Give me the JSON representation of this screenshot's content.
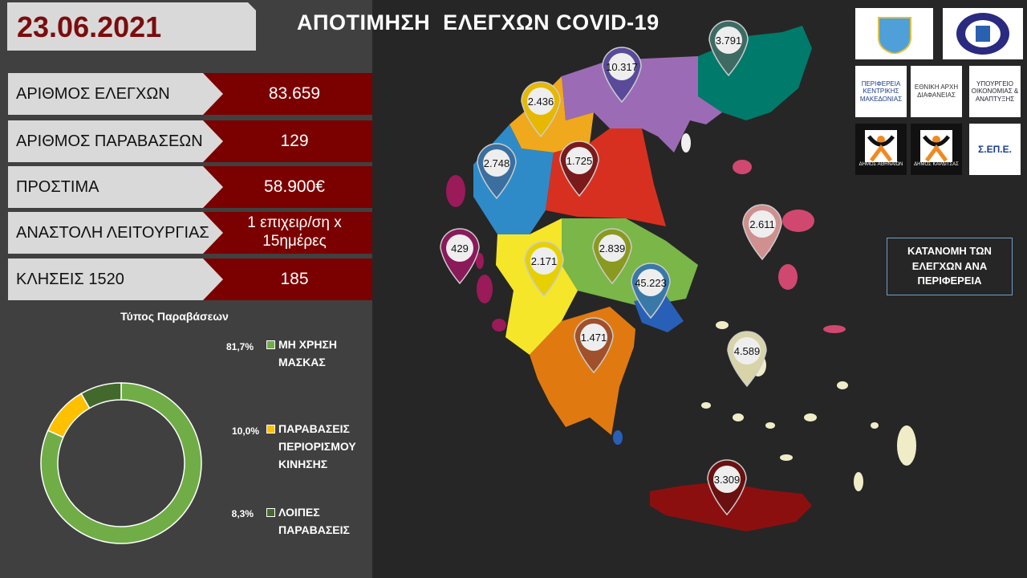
{
  "date": "23.06.2021",
  "title": "ΑΠΟΤΙΜΗΣΗ  ΕΛΕΓΧΩΝ COVID-19",
  "stats": [
    {
      "label": "ΑΡΙΘΜΟΣ ΕΛΕΓΧΩΝ",
      "value": "83.659"
    },
    {
      "label": "ΑΡΙΘΜΟΣ ΠΑΡΑΒΑΣΕΩΝ",
      "value": "129"
    },
    {
      "label": "ΠΡΟΣΤΙΜΑ",
      "value": "58.900€"
    },
    {
      "label": "ΑΝΑΣΤΟΛΗ ΛΕΙΤΟΥΡΓΙΑΣ",
      "value": "1 επιχειρ/ση x 15ημέρες"
    },
    {
      "label": "ΚΛΗΣΕΙΣ 1520",
      "value": "185"
    }
  ],
  "chart_data": {
    "type": "pie",
    "donut": true,
    "title": "Τύπος Παραβάσεων",
    "categories": [
      "ΜΗ ΧΡΗΣΗ ΜΑΣΚΑΣ",
      "ΠΑΡΑΒΑΣΕΙΣ ΠΕΡΙΟΡΙΣΜΟΥ ΚΙΝΗΣΗΣ",
      "ΛΟΙΠΕΣ ΠΑΡΑΒΑΣΕΙΣ"
    ],
    "values": [
      81.7,
      10.0,
      8.3
    ],
    "labels": [
      "81,7%",
      "10,0%",
      "8,3%"
    ],
    "colors": [
      "#70ad47",
      "#ffc000",
      "#43682b"
    ],
    "legend": "right"
  },
  "map": {
    "caption": "ΚΑΤΑΝΟΜΗ ΤΩΝ ΕΛΕΓΧΩΝ ΑΝΑ ΠΕΡΙΦΕΡΕΙΑ",
    "pins": [
      {
        "value": "3.791",
        "color": "#3d6b63"
      },
      {
        "value": "10.317",
        "color": "#5a4a9a"
      },
      {
        "value": "2.436",
        "color": "#e6b800"
      },
      {
        "value": "1.725",
        "color": "#7a1a1a"
      },
      {
        "value": "2.748",
        "color": "#3a6fa0"
      },
      {
        "value": "2.611",
        "color": "#d09090"
      },
      {
        "value": "429",
        "color": "#8a1a5a"
      },
      {
        "value": "2.839",
        "color": "#8a9a20"
      },
      {
        "value": "2.171",
        "color": "#e6d000"
      },
      {
        "value": "45.223",
        "color": "#3a78a8"
      },
      {
        "value": "1.471",
        "color": "#a0502a"
      },
      {
        "value": "4.589",
        "color": "#d8d4a8"
      },
      {
        "value": "3.309",
        "color": "#6a1010"
      }
    ]
  },
  "logos": [
    "ΛΙΜΕΝΙΚΟ ΣΩΜΑ",
    "ΕΛΛΗΝΙΚΗ ΑΣΤΥΝΟΜΙΑ",
    "ΠΕΡΙΦΕΡΕΙΑ ΚΕΝΤΡΙΚΗΣ ΜΑΚΕΔΟΝΙΑΣ",
    "ΕΘΝΙΚΗ ΑΡΧΗ ΔΙΑΦΑΝΕΙΑΣ",
    "ΥΠΟΥΡΓΕΙΟ ΟΙΚΟΝΟΜΙΑΣ & ΑΝΑΠΤΥΞΗΣ",
    "ΔΗΜΟΣ ΑΘΗΝΑΙΩΝ",
    "ΔΗΜΟΣ ΚΑΡΔΙΤΣΑΣ",
    "Σ.ΕΠ.Ε."
  ]
}
